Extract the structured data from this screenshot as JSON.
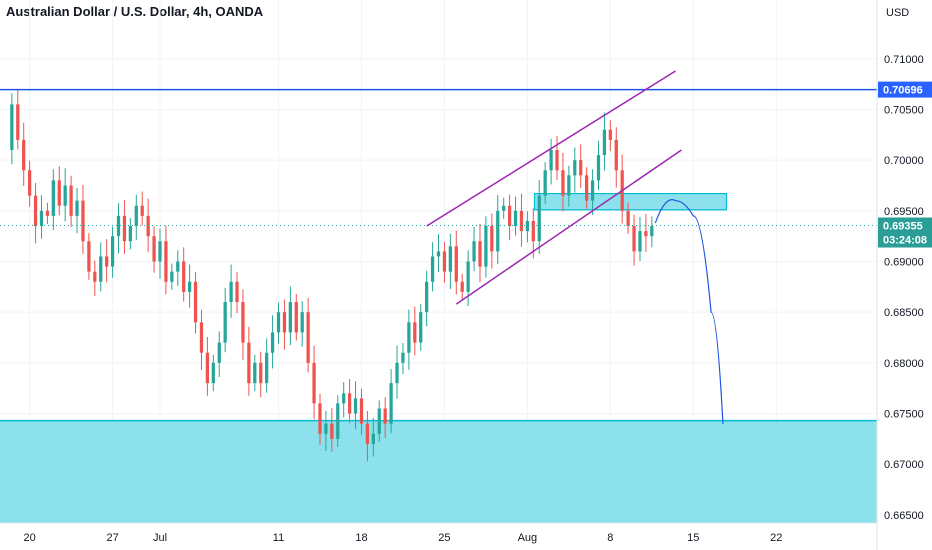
{
  "chart_data": {
    "type": "candlestick",
    "title": "Australian Dollar / U.S. Dollar, 4h, OANDA",
    "currency": "USD",
    "y_axis": {
      "range": [
        0.6642,
        0.7158
      ],
      "ticks": [
        "0.66500",
        "0.67000",
        "0.67500",
        "0.68000",
        "0.68500",
        "0.69000",
        "0.69500",
        "0.70000",
        "0.70500",
        "0.71000"
      ],
      "tick_values": [
        0.665,
        0.67,
        0.675,
        0.68,
        0.685,
        0.69,
        0.695,
        0.7,
        0.705,
        0.71
      ]
    },
    "x_axis": {
      "labels": [
        "20",
        "27",
        "Jul",
        "11",
        "18",
        "25",
        "Aug",
        "8",
        "15",
        "22"
      ],
      "label_days": [
        0,
        7,
        11,
        21,
        28,
        35,
        42,
        49,
        56,
        63
      ],
      "range_days": [
        -2.5,
        71.5
      ]
    },
    "price_badge": {
      "value": "0.69355",
      "countdown": "03:24:08",
      "color": "#2a9d96"
    },
    "resistance_badge": {
      "value": "0.70696",
      "color": "#2962ff"
    },
    "levels": {
      "resistance": 0.70696,
      "current": 0.69355,
      "demand_zone_top": 0.6743,
      "demand_zone_bottom": 0.6642
    },
    "colors": {
      "up": "#26a69a",
      "down": "#ef5350",
      "zone": "#8de1ec",
      "zone_border": "#00bcd4",
      "channel": "#9c27b0",
      "line": "#1e53e5"
    },
    "series_close_path": [
      [
        -2.0,
        0.701
      ],
      [
        -1.5,
        0.7055
      ],
      [
        -1.0,
        0.702
      ],
      [
        -0.5,
        0.699
      ],
      [
        0.0,
        0.6965
      ],
      [
        0.5,
        0.6935
      ],
      [
        1.0,
        0.695
      ],
      [
        1.5,
        0.6945
      ],
      [
        2.0,
        0.698
      ],
      [
        2.5,
        0.6955
      ],
      [
        3.0,
        0.6975
      ],
      [
        3.5,
        0.6945
      ],
      [
        4.0,
        0.696
      ],
      [
        4.5,
        0.692
      ],
      [
        5.0,
        0.689
      ],
      [
        5.5,
        0.688
      ],
      [
        6.0,
        0.6905
      ],
      [
        6.5,
        0.6895
      ],
      [
        7.0,
        0.6925
      ],
      [
        7.5,
        0.6945
      ],
      [
        8.0,
        0.692
      ],
      [
        8.5,
        0.6935
      ],
      [
        9.0,
        0.6955
      ],
      [
        9.5,
        0.6945
      ],
      [
        10.0,
        0.6925
      ],
      [
        10.5,
        0.69
      ],
      [
        11.0,
        0.692
      ],
      [
        11.5,
        0.688
      ],
      [
        12.0,
        0.689
      ],
      [
        12.5,
        0.69
      ],
      [
        13.0,
        0.687
      ],
      [
        13.5,
        0.688
      ],
      [
        14.0,
        0.684
      ],
      [
        14.5,
        0.681
      ],
      [
        15.0,
        0.678
      ],
      [
        15.5,
        0.68
      ],
      [
        16.0,
        0.682
      ],
      [
        16.5,
        0.686
      ],
      [
        17.0,
        0.688
      ],
      [
        17.5,
        0.686
      ],
      [
        18.0,
        0.682
      ],
      [
        18.5,
        0.678
      ],
      [
        19.0,
        0.68
      ],
      [
        19.5,
        0.678
      ],
      [
        20.0,
        0.681
      ],
      [
        20.5,
        0.683
      ],
      [
        21.0,
        0.685
      ],
      [
        21.5,
        0.683
      ],
      [
        22.0,
        0.686
      ],
      [
        22.5,
        0.683
      ],
      [
        23.0,
        0.685
      ],
      [
        23.5,
        0.68
      ],
      [
        24.0,
        0.676
      ],
      [
        24.5,
        0.673
      ],
      [
        25.0,
        0.674
      ],
      [
        25.5,
        0.6725
      ],
      [
        26.0,
        0.676
      ],
      [
        26.5,
        0.677
      ],
      [
        27.0,
        0.675
      ],
      [
        27.5,
        0.6765
      ],
      [
        28.0,
        0.674
      ],
      [
        28.5,
        0.672
      ],
      [
        29.0,
        0.673
      ],
      [
        29.5,
        0.6755
      ],
      [
        30.0,
        0.674
      ],
      [
        30.5,
        0.678
      ],
      [
        31.0,
        0.68
      ],
      [
        31.5,
        0.681
      ],
      [
        32.0,
        0.684
      ],
      [
        32.5,
        0.682
      ],
      [
        33.0,
        0.685
      ],
      [
        33.5,
        0.688
      ],
      [
        34.0,
        0.6905
      ],
      [
        34.5,
        0.691
      ],
      [
        35.0,
        0.689
      ],
      [
        35.5,
        0.6915
      ],
      [
        36.0,
        0.688
      ],
      [
        36.5,
        0.687
      ],
      [
        37.0,
        0.69
      ],
      [
        37.5,
        0.692
      ],
      [
        38.0,
        0.6895
      ],
      [
        38.5,
        0.6935
      ],
      [
        39.0,
        0.691
      ],
      [
        39.5,
        0.695
      ],
      [
        40.0,
        0.6955
      ],
      [
        40.5,
        0.6935
      ],
      [
        41.0,
        0.695
      ],
      [
        41.5,
        0.693
      ],
      [
        42.0,
        0.694
      ],
      [
        42.5,
        0.692
      ],
      [
        43.0,
        0.6965
      ],
      [
        43.5,
        0.699
      ],
      [
        44.0,
        0.701
      ],
      [
        44.5,
        0.699
      ],
      [
        45.0,
        0.6965
      ],
      [
        45.5,
        0.6985
      ],
      [
        46.0,
        0.7
      ],
      [
        46.5,
        0.6985
      ],
      [
        47.0,
        0.696
      ],
      [
        47.5,
        0.698
      ],
      [
        48.0,
        0.7005
      ],
      [
        48.5,
        0.703
      ],
      [
        49.0,
        0.702
      ],
      [
        49.5,
        0.699
      ],
      [
        50.0,
        0.695
      ],
      [
        50.5,
        0.6935
      ],
      [
        51.0,
        0.691
      ],
      [
        51.5,
        0.693
      ],
      [
        52.0,
        0.6925
      ],
      [
        52.5,
        0.6935
      ]
    ],
    "projection": [
      [
        52.8,
        0.6938
      ],
      [
        54.5,
        0.696
      ],
      [
        56.0,
        0.6945
      ],
      [
        57.5,
        0.685
      ],
      [
        58.5,
        0.674
      ]
    ]
  }
}
